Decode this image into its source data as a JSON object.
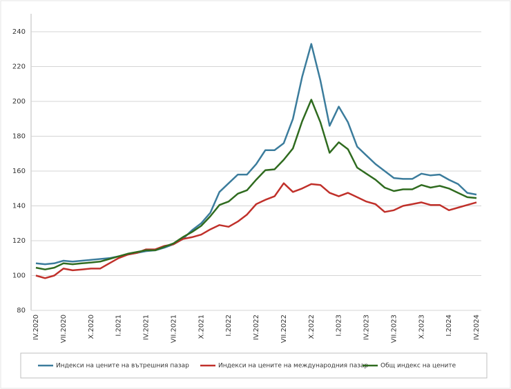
{
  "chart_data": {
    "type": "line",
    "categories": [
      "IV.2020",
      null,
      null,
      "VII.2020",
      null,
      null,
      "X.2020",
      null,
      null,
      "I.2021",
      null,
      null,
      "IV.2021",
      null,
      null,
      "VII.2021",
      null,
      null,
      "X.2021",
      null,
      null,
      "I.2022",
      null,
      null,
      "IV.2022",
      null,
      null,
      "VII.2022",
      null,
      null,
      "X.2022",
      null,
      null,
      "I.2023",
      null,
      null,
      "IV.2023",
      null,
      null,
      "VII.2023",
      null,
      null,
      "X.2023",
      null,
      null,
      "I.2024",
      null,
      null,
      "IV.2024"
    ],
    "series": [
      {
        "name": "Индекси на цените на вътрешния пазар",
        "color": "#3b7c9c",
        "values": [
          107,
          106.5,
          107,
          108.5,
          108,
          108.5,
          109,
          109.5,
          110,
          111,
          112,
          113,
          114,
          114.5,
          116,
          118,
          121,
          126,
          130,
          136,
          148,
          153,
          158,
          158,
          164,
          172,
          172,
          176,
          190,
          214,
          233,
          212,
          186,
          197,
          188,
          174,
          169,
          164,
          160,
          156,
          155.5,
          155.5,
          158.5,
          157.5,
          158,
          155,
          152.5,
          147.5,
          146.5
        ]
      },
      {
        "name": "Индекси на цените на международния пазар",
        "color": "#c0302a",
        "values": [
          100,
          98.5,
          100,
          104,
          103,
          103.5,
          104,
          104,
          107,
          110,
          112,
          113,
          115,
          115,
          117,
          118,
          121,
          122,
          123.5,
          126.5,
          129,
          128,
          131,
          135,
          141,
          143.5,
          145.5,
          153,
          148,
          150,
          152.5,
          152,
          147.5,
          145.5,
          147.5,
          145,
          142.5,
          141,
          136.5,
          137.5,
          140,
          141,
          142,
          140.5,
          140.5,
          137.5,
          139,
          140.5,
          142
        ]
      },
      {
        "name": "Общ индекс на цените",
        "color": "#2f6b1f",
        "values": [
          104.5,
          103.5,
          104.5,
          107,
          106.5,
          107,
          107.5,
          108,
          109.5,
          111,
          112.5,
          113.5,
          114.5,
          114.5,
          116.5,
          118.5,
          122,
          125,
          128.5,
          134,
          140.5,
          142.5,
          147,
          149,
          155,
          160.5,
          161,
          166.5,
          173,
          188.5,
          201,
          188,
          170.5,
          176.5,
          172.5,
          162,
          158.5,
          155,
          150.5,
          148.5,
          149.5,
          149.5,
          152,
          150.5,
          151.5,
          150,
          147.5,
          145,
          144.5
        ]
      }
    ],
    "ylim": [
      80,
      240
    ],
    "yticks": [
      80,
      100,
      120,
      140,
      160,
      180,
      200,
      220,
      240
    ],
    "grid": true
  }
}
